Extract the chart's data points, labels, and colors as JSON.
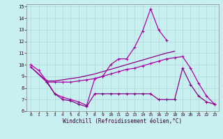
{
  "xlabel": "Windchill (Refroidissement éolien,°C)",
  "bg_color": "#c8f0f0",
  "grid_color": "#b0d8d8",
  "line_color1": "#aa00aa",
  "line_color2": "#880088",
  "xlim": [
    -0.5,
    23.5
  ],
  "ylim": [
    6,
    15.2
  ],
  "xticks": [
    0,
    1,
    2,
    3,
    4,
    5,
    6,
    7,
    8,
    9,
    10,
    11,
    12,
    13,
    14,
    15,
    16,
    17,
    18,
    19,
    20,
    21,
    22,
    23
  ],
  "yticks": [
    6,
    7,
    8,
    9,
    10,
    11,
    12,
    13,
    14,
    15
  ],
  "line1_x": [
    0,
    1,
    2,
    3,
    4,
    5,
    6,
    7,
    8,
    9,
    10,
    11,
    12,
    13,
    14,
    15,
    16,
    17
  ],
  "line1_y": [
    10.0,
    9.5,
    8.6,
    7.5,
    7.2,
    7.0,
    6.8,
    6.5,
    8.8,
    9.0,
    10.0,
    10.5,
    10.5,
    11.5,
    12.9,
    14.8,
    13.0,
    12.1
  ],
  "line2_x": [
    0,
    2,
    3,
    4,
    5,
    6,
    7,
    8,
    9,
    10,
    11,
    12,
    13,
    14,
    15,
    16,
    17,
    18
  ],
  "line2_y": [
    9.8,
    8.6,
    8.6,
    8.7,
    8.8,
    8.9,
    9.05,
    9.2,
    9.4,
    9.6,
    9.8,
    10.0,
    10.2,
    10.4,
    10.6,
    10.8,
    11.0,
    11.15
  ],
  "line3_x": [
    0,
    2,
    3,
    4,
    5,
    6,
    7,
    8,
    9,
    10,
    11,
    12,
    13,
    14,
    15,
    16,
    17,
    18,
    19,
    20,
    21,
    22,
    23
  ],
  "line3_y": [
    9.8,
    8.5,
    8.5,
    8.5,
    8.5,
    8.6,
    8.7,
    8.8,
    9.0,
    9.2,
    9.4,
    9.6,
    9.7,
    9.9,
    10.1,
    10.3,
    10.5,
    10.6,
    10.7,
    9.7,
    8.4,
    7.3,
    6.6
  ],
  "line4_x": [
    2,
    3,
    4,
    5,
    6,
    7,
    8,
    9,
    10,
    11,
    12,
    13,
    14,
    15,
    16,
    17,
    18,
    19,
    20,
    21,
    22,
    23
  ],
  "line4_y": [
    8.5,
    7.5,
    7.0,
    6.9,
    6.6,
    6.4,
    7.5,
    7.5,
    7.5,
    7.5,
    7.5,
    7.5,
    7.5,
    7.5,
    7.0,
    7.0,
    7.0,
    9.7,
    8.3,
    7.3,
    6.8,
    6.6
  ]
}
